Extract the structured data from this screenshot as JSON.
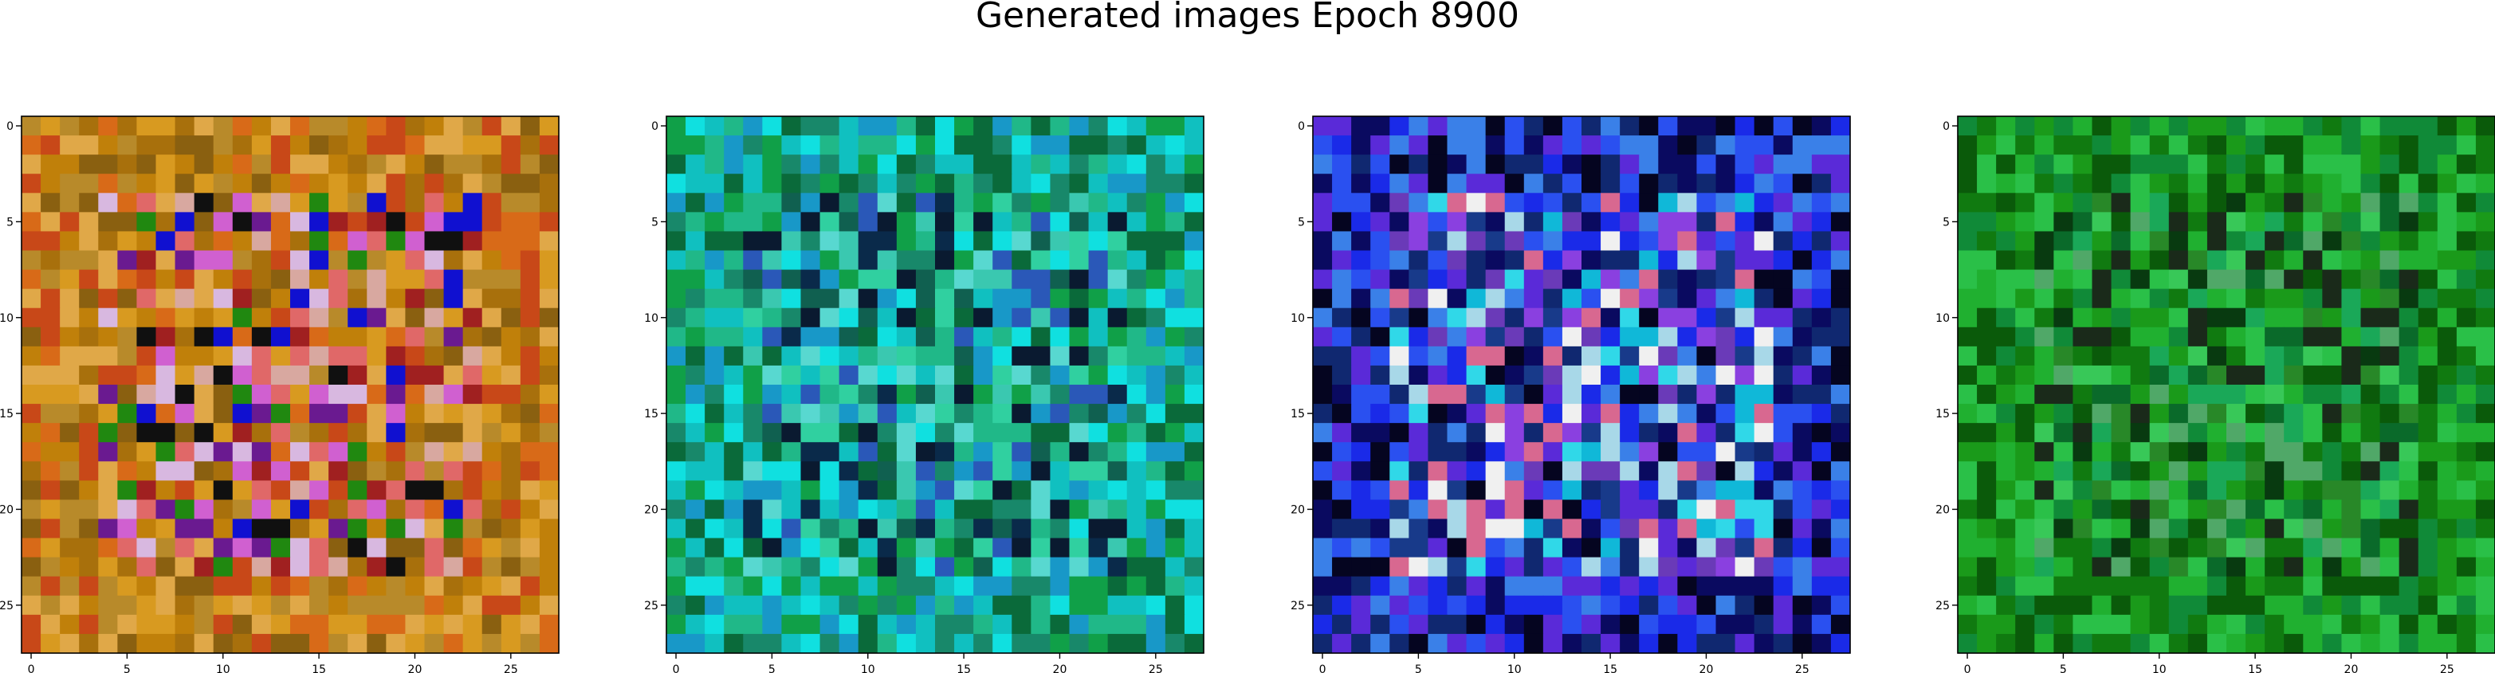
{
  "figure": {
    "title": "Generated images Epoch 8900"
  },
  "chart_data": [
    {
      "type": "heatmap",
      "grid_size": 28,
      "x_ticks": [
        0,
        5,
        10,
        15,
        20,
        25
      ],
      "y_ticks": [
        0,
        5,
        10,
        15,
        20,
        25
      ],
      "xlim": [
        -0.5,
        27.5
      ],
      "ylim": [
        27.5,
        -0.5
      ],
      "grid": false,
      "palette": [
        "#c0800a",
        "#d89a20",
        "#a8700c",
        "#e0a848",
        "#8a6010",
        "#b88a2a",
        "#d86a18",
        "#c84818",
        "#101010",
        "#6a1a90",
        "#1010d0",
        "#d8b8e0",
        "#a02020",
        "#d060d0",
        "#208810",
        "#e06868",
        "#d8a8a0"
      ]
    },
    {
      "type": "heatmap",
      "grid_size": 28,
      "x_ticks": [
        0,
        5,
        10,
        15,
        20,
        25
      ],
      "y_ticks": [
        0,
        5,
        10,
        15,
        20,
        25
      ],
      "xlim": [
        -0.5,
        27.5
      ],
      "ylim": [
        27.5,
        -0.5
      ],
      "grid": false,
      "palette": [
        "#10a048",
        "#18886a",
        "#0a6a3a",
        "#20b888",
        "#10c0c0",
        "#10e0e0",
        "#1898c8",
        "#3ac8b0",
        "#0a2a4a",
        "#2a58b8",
        "#106050",
        "#30d0a0",
        "#58d8d0",
        "#0a1a30"
      ]
    },
    {
      "type": "heatmap",
      "grid_size": 28,
      "x_ticks": [
        0,
        5,
        10,
        15,
        20,
        25
      ],
      "y_ticks": [
        0,
        5,
        10,
        15,
        20,
        25
      ],
      "xlim": [
        -0.5,
        27.5
      ],
      "ylim": [
        27.5,
        -0.5
      ],
      "grid": false,
      "palette": [
        "#1a2ae8",
        "#2a50f0",
        "#3a80e8",
        "#5a2ad8",
        "#0a0a60",
        "#050520",
        "#102870",
        "#10b8d8",
        "#30d8e8",
        "#a8d8e8",
        "#d86890",
        "#6a3ab8",
        "#8a40e0",
        "#f0f0f0",
        "#183a8a"
      ]
    },
    {
      "type": "heatmap",
      "grid_size": 28,
      "x_ticks": [
        0,
        5,
        10,
        15,
        20,
        25
      ],
      "y_ticks": [
        0,
        5,
        10,
        15,
        20,
        25
      ],
      "xlim": [
        -0.5,
        27.5
      ],
      "ylim": [
        27.5,
        -0.5
      ],
      "grid": false,
      "palette": [
        "#107a10",
        "#1a9a1a",
        "#0a5a0a",
        "#20b030",
        "#2ac048",
        "#108a38",
        "#1aa858",
        "#083a10",
        "#38c858",
        "#0a6a2a",
        "#50a868",
        "#1a2a1a",
        "#288828"
      ]
    }
  ]
}
